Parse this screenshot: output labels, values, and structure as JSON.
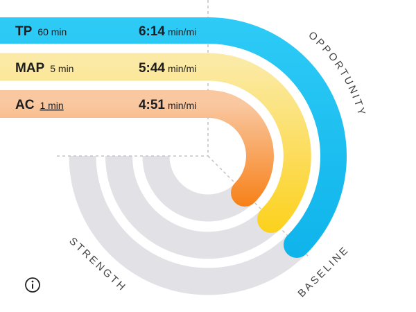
{
  "rows": [
    {
      "label": "TP",
      "duration": "60 min",
      "pace": "6:14",
      "unit": "min/mi"
    },
    {
      "label": "MAP",
      "duration": "5 min",
      "pace": "5:44",
      "unit": "min/mi"
    },
    {
      "label": "AC",
      "duration": "1 min",
      "pace": "4:51",
      "unit": "min/mi"
    }
  ],
  "arc_labels": {
    "opportunity": "OPPORTUNITY",
    "baseline": "BASELINE",
    "strength": "STRENGTH"
  }
}
